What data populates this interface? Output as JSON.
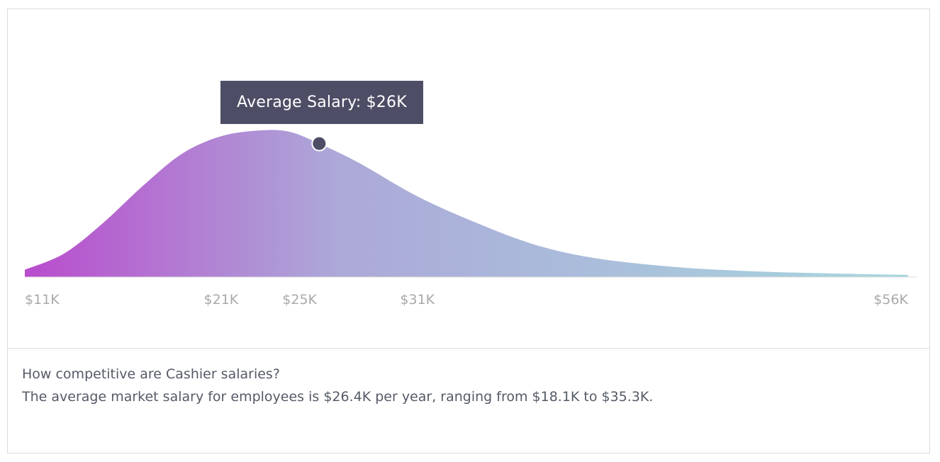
{
  "chart_data": {
    "type": "area",
    "x_tick_labels": [
      "$11K",
      "$21K",
      "$25K",
      "$31K",
      "$56K"
    ],
    "x_tick_values": [
      11,
      21,
      25,
      31,
      56
    ],
    "x_unit": "$K",
    "xlim": [
      11,
      56
    ],
    "grid": false,
    "legend": "none",
    "curve": {
      "x": [
        11,
        13,
        15,
        17,
        19,
        21,
        23,
        24.5,
        26,
        28,
        31,
        34,
        37,
        40,
        44,
        48,
        52,
        56
      ],
      "y": [
        0.05,
        0.16,
        0.37,
        0.62,
        0.84,
        0.96,
        1.0,
        0.99,
        0.91,
        0.78,
        0.55,
        0.37,
        0.22,
        0.13,
        0.07,
        0.04,
        0.025,
        0.015
      ]
    },
    "marker": {
      "x": 26,
      "y": 0.91
    },
    "colors": {
      "left": "#b94ccd",
      "mid": "#aca8d8",
      "right": "#a7d7de",
      "marker": "#4d4e66",
      "axis": "#dddddd"
    }
  },
  "tooltip": {
    "text": "Average Salary: $26K"
  },
  "summary": {
    "question": "How competitive are Cashier salaries?",
    "statement": "The average market salary for employees is $26.4K per year, ranging from $18.1K to $35.3K."
  }
}
